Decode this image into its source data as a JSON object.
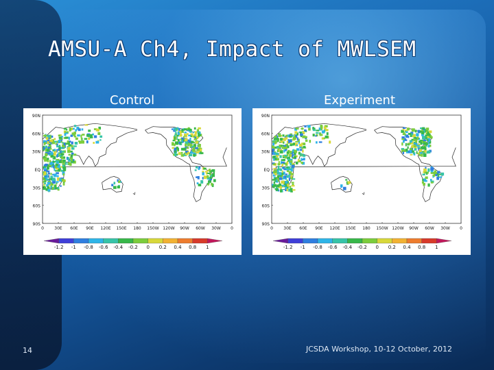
{
  "slide": {
    "title": "AMSU-A Ch4, Impact of MWLSEM",
    "page_number": "14",
    "footer": "JCSDA Workshop, 10-12 October, 2012"
  },
  "panels": [
    {
      "heading": "Control",
      "lat_labels": [
        "90N",
        "60N",
        "30N",
        "EQ",
        "30S",
        "60S",
        "90S"
      ],
      "lon_labels": [
        "0",
        "30E",
        "60E",
        "90E",
        "120E",
        "150E",
        "180",
        "150W",
        "120W",
        "90W",
        "60W",
        "30W",
        "0"
      ],
      "colorbar_labels": [
        "-1.2",
        "-1",
        "-0.8",
        "-0.6",
        "-0.4",
        "-0.2",
        "0",
        "0.2",
        "0.4",
        "0.8",
        "1"
      ]
    },
    {
      "heading": "Experiment",
      "lat_labels": [
        "90N",
        "60N",
        "30N",
        "EQ",
        "30S",
        "60S",
        "90S"
      ],
      "lon_labels": [
        "0",
        "30E",
        "60E",
        "90E",
        "120E",
        "150E",
        "180",
        "150W",
        "120W",
        "90W",
        "60W",
        "30W",
        "0"
      ],
      "colorbar_labels": [
        "-1.2",
        "-1",
        "-0.8",
        "-0.6",
        "-0.4",
        "-0.2",
        "0",
        "0.2",
        "0.4",
        "0.8",
        "1"
      ]
    }
  ],
  "colors": {
    "colorbar": [
      "#6a1b9a",
      "#3f3fd8",
      "#2f7fe0",
      "#2fb5e8",
      "#37c4a8",
      "#38b84a",
      "#7ccd3c",
      "#d8d83a",
      "#f2b233",
      "#ee7d2e",
      "#d83a2a",
      "#c2185b"
    ]
  }
}
